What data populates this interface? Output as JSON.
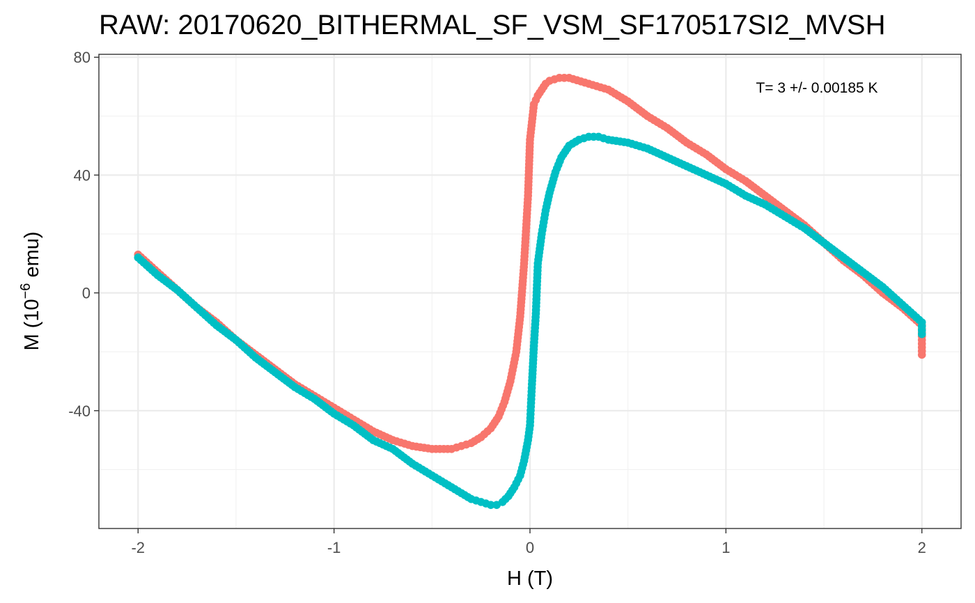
{
  "title": "RAW: 20170620_BITHERMAL_SF_VSM_SF170517SI2_MVSH",
  "chart_data": {
    "type": "scatter",
    "title": "RAW: 20170620_BITHERMAL_SF_VSM_SF170517SI2_MVSH",
    "xlabel": "H (T)",
    "ylabel_text": "M (10",
    "ylabel_sup": "−6",
    "ylabel_tail": " emu)",
    "xlim": [
      -2.2,
      2.2
    ],
    "ylim": [
      -80,
      81
    ],
    "x_ticks": [
      -2,
      -1,
      0,
      1,
      2
    ],
    "x_tick_labels": [
      "-2",
      "-1",
      "0",
      "1",
      "2"
    ],
    "y_ticks": [
      -40,
      0,
      40,
      80
    ],
    "y_tick_labels": [
      "-40",
      "0",
      "40",
      "80"
    ],
    "x_minor": [
      -1.5,
      -0.5,
      0.5,
      1.5
    ],
    "y_minor": [
      -60,
      -20,
      20,
      60
    ],
    "grid": true,
    "legend": "none",
    "annotation": "T= 3 +/- 0.00185 K",
    "series": [
      {
        "color": "#F8766D",
        "x": [
          -2.0,
          -1.9,
          -1.8,
          -1.7,
          -1.6,
          -1.5,
          -1.4,
          -1.3,
          -1.2,
          -1.1,
          -1.0,
          -0.9,
          -0.8,
          -0.7,
          -0.6,
          -0.5,
          -0.4,
          -0.35,
          -0.3,
          -0.25,
          -0.2,
          -0.16,
          -0.13,
          -0.1,
          -0.07,
          -0.05,
          -0.03,
          -0.01,
          0.0,
          0.02,
          0.04,
          0.06,
          0.08,
          0.1,
          0.15,
          0.2,
          0.3,
          0.4,
          0.5,
          0.6,
          0.7,
          0.8,
          0.9,
          1.0,
          1.1,
          1.2,
          1.3,
          1.4,
          1.5,
          1.6,
          1.7,
          1.8,
          1.9,
          2.0,
          2.0
        ],
        "y": [
          13,
          7,
          1,
          -5,
          -10,
          -16,
          -21,
          -26,
          -31,
          -35,
          -39,
          -43,
          -47,
          -50,
          -52,
          -53,
          -53,
          -52,
          -51,
          -49,
          -46,
          -42,
          -37,
          -30,
          -20,
          -8,
          10,
          33,
          52,
          64,
          67,
          69,
          71,
          72,
          73,
          73,
          71,
          69,
          65,
          60,
          56,
          51,
          47,
          42,
          38,
          33,
          28,
          23,
          17,
          11,
          6,
          0,
          -5,
          -11,
          -21
        ]
      },
      {
        "color": "#00BFC4",
        "x": [
          -2.0,
          -1.9,
          -1.8,
          -1.7,
          -1.6,
          -1.5,
          -1.4,
          -1.3,
          -1.2,
          -1.1,
          -1.0,
          -0.9,
          -0.8,
          -0.7,
          -0.6,
          -0.5,
          -0.4,
          -0.3,
          -0.25,
          -0.2,
          -0.17,
          -0.14,
          -0.11,
          -0.08,
          -0.05,
          -0.03,
          -0.01,
          0.0,
          0.01,
          0.02,
          0.03,
          0.04,
          0.06,
          0.08,
          0.1,
          0.13,
          0.16,
          0.2,
          0.25,
          0.3,
          0.35,
          0.4,
          0.5,
          0.6,
          0.7,
          0.8,
          0.9,
          1.0,
          1.1,
          1.2,
          1.3,
          1.4,
          1.5,
          1.6,
          1.7,
          1.8,
          1.9,
          2.0,
          2.0
        ],
        "y": [
          12,
          6,
          1,
          -5,
          -11,
          -16,
          -22,
          -27,
          -32,
          -36,
          -41,
          -45,
          -50,
          -53,
          -58,
          -62,
          -66,
          -70,
          -71,
          -72,
          -72,
          -71,
          -69,
          -66,
          -62,
          -57,
          -50,
          -45,
          -31,
          -18,
          -7,
          10,
          20,
          28,
          34,
          41,
          46,
          50,
          52,
          53,
          53,
          52,
          51,
          49,
          46,
          43,
          40,
          37,
          33,
          30,
          26,
          22,
          17,
          12,
          7,
          2,
          -4,
          -10,
          -14
        ]
      }
    ]
  }
}
